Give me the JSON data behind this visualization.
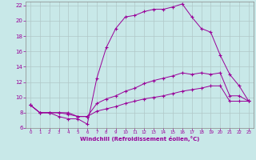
{
  "xlabel": "Windchill (Refroidissement éolien,°C)",
  "xlim": [
    -0.5,
    23.5
  ],
  "ylim": [
    6,
    22.5
  ],
  "xticks": [
    0,
    1,
    2,
    3,
    4,
    5,
    6,
    7,
    8,
    9,
    10,
    11,
    12,
    13,
    14,
    15,
    16,
    17,
    18,
    19,
    20,
    21,
    22,
    23
  ],
  "yticks": [
    6,
    8,
    10,
    12,
    14,
    16,
    18,
    20,
    22
  ],
  "background_color": "#c8e8e8",
  "grid_color": "#b0c8c8",
  "line_color": "#990099",
  "line1_x": [
    0,
    1,
    2,
    3,
    4,
    5,
    6,
    7,
    8,
    9,
    10,
    11,
    12,
    13,
    14,
    15,
    16,
    17,
    18,
    19,
    20,
    21,
    22,
    23
  ],
  "line1_y": [
    9.0,
    8.0,
    8.0,
    7.5,
    7.2,
    7.2,
    6.5,
    12.5,
    16.5,
    19.0,
    20.5,
    20.7,
    21.2,
    21.5,
    21.5,
    21.8,
    22.2,
    20.5,
    19.0,
    18.5,
    15.5,
    13.0,
    11.5,
    9.5
  ],
  "line2_x": [
    0,
    1,
    2,
    3,
    4,
    5,
    6,
    7,
    8,
    9,
    10,
    11,
    12,
    13,
    14,
    15,
    16,
    17,
    18,
    19,
    20,
    21,
    22,
    23
  ],
  "line2_y": [
    9.0,
    8.0,
    8.0,
    8.0,
    8.0,
    7.5,
    7.5,
    9.2,
    9.8,
    10.2,
    10.8,
    11.2,
    11.8,
    12.2,
    12.5,
    12.8,
    13.2,
    13.0,
    13.2,
    13.0,
    13.2,
    10.2,
    10.2,
    9.5
  ],
  "line3_x": [
    0,
    1,
    2,
    3,
    4,
    5,
    6,
    7,
    8,
    9,
    10,
    11,
    12,
    13,
    14,
    15,
    16,
    17,
    18,
    19,
    20,
    21,
    22,
    23
  ],
  "line3_y": [
    9.0,
    8.0,
    8.0,
    8.0,
    7.8,
    7.5,
    7.5,
    8.2,
    8.5,
    8.8,
    9.2,
    9.5,
    9.8,
    10.0,
    10.2,
    10.5,
    10.8,
    11.0,
    11.2,
    11.5,
    11.5,
    9.5,
    9.5,
    9.5
  ]
}
